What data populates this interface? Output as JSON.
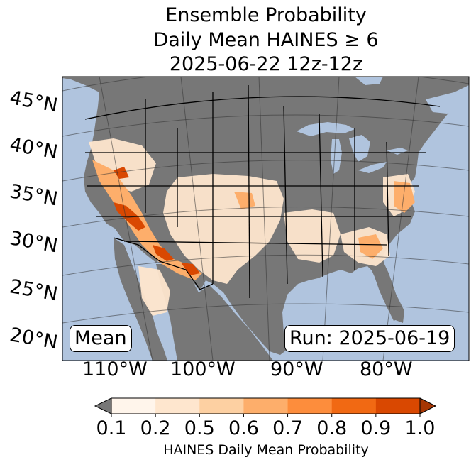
{
  "title": {
    "line1": "Ensemble Probability",
    "line2": "Daily Mean HAINES ≥ 6",
    "line3": "2025-06-22 12z-12z"
  },
  "map": {
    "ocean_color": "#b0c4de",
    "land_color": "#777777",
    "lat_labels": [
      "45°N",
      "40°N",
      "35°N",
      "30°N",
      "25°N",
      "20°N"
    ],
    "lon_labels": [
      "110°W",
      "100°W",
      "90°W",
      "80°W"
    ],
    "mean_label": "Mean",
    "run_label": "Run: 2025-06-19"
  },
  "colorbar": {
    "ticks": [
      "0.1",
      "0.2",
      "0.5",
      "0.6",
      "0.7",
      "0.8",
      "0.9",
      "1.0"
    ],
    "colors": [
      "#fff5eb",
      "#fee6ce",
      "#fdd0a2",
      "#fdae6b",
      "#fd8d3c",
      "#f16913",
      "#d94801",
      "#a63603"
    ],
    "under_color": "#777777",
    "label": "HAINES Daily Mean Probability"
  }
}
